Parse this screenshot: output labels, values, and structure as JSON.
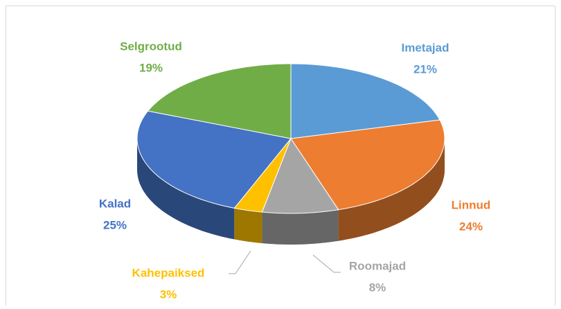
{
  "chart_data": {
    "type": "pie",
    "pie_style": "3d",
    "categories": [
      "Imetajad",
      "Linnud",
      "Roomajad",
      "Kahepaiksed",
      "Kalad",
      "Selgrootud"
    ],
    "values": [
      21,
      24,
      8,
      3,
      25,
      19
    ],
    "value_labels": [
      "21%",
      "24%",
      "8%",
      "3%",
      "25%",
      "19%"
    ],
    "colors": [
      "#5b9bd5",
      "#ed7d31",
      "#a5a5a5",
      "#ffc000",
      "#4472c4",
      "#70ad47"
    ]
  }
}
